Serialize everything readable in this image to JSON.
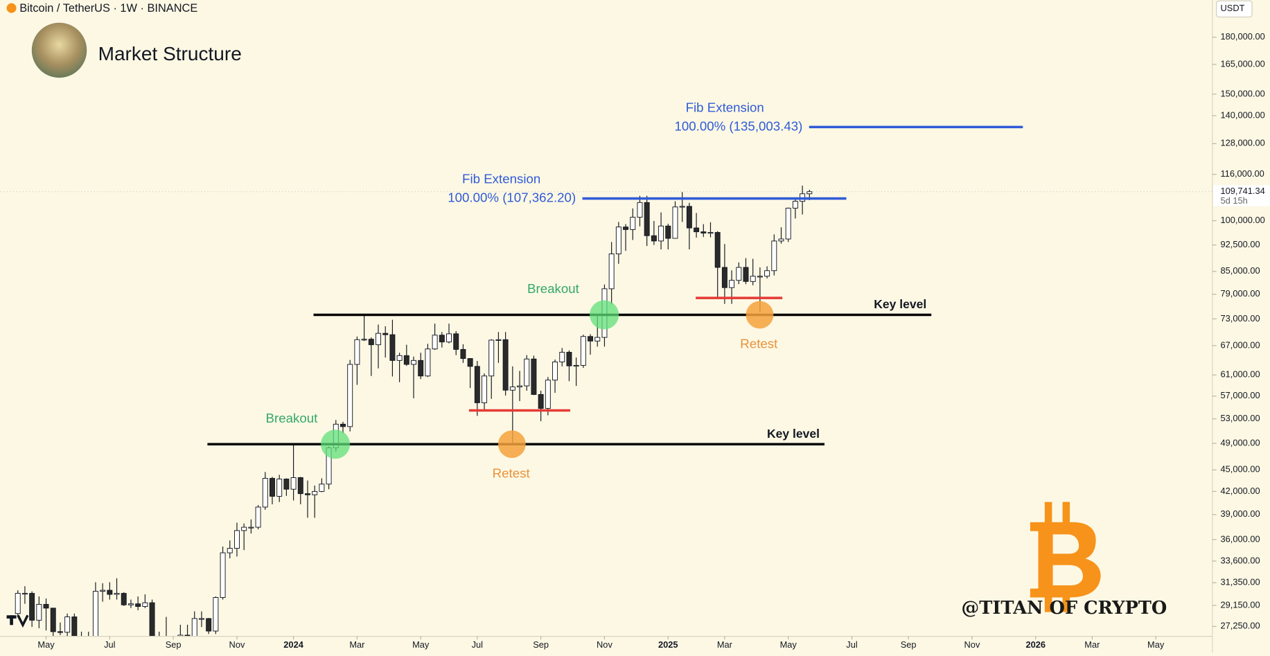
{
  "chart_data": {
    "type": "candlestick",
    "title": "Market Structure",
    "symbol": "Bitcoin / TetherUS · 1W · BINANCE",
    "currency": "USDT",
    "watermark": "@TITAN OF CRYPTO",
    "log_scale": true,
    "xlim": [
      -2.5,
      169
    ],
    "ylim": [
      26400,
      202800
    ],
    "xticks": [
      {
        "value": 4,
        "label": "May"
      },
      {
        "value": 13,
        "label": "Jul"
      },
      {
        "value": 22,
        "label": "Sep"
      },
      {
        "value": 31,
        "label": "Nov"
      },
      {
        "value": 39,
        "label": "2024"
      },
      {
        "value": 48,
        "label": "Mar"
      },
      {
        "value": 57,
        "label": "May"
      },
      {
        "value": 65,
        "label": "Jul"
      },
      {
        "value": 74,
        "label": "Sep"
      },
      {
        "value": 83,
        "label": "Nov"
      },
      {
        "value": 92,
        "label": "2025"
      },
      {
        "value": 100,
        "label": "Mar"
      },
      {
        "value": 109,
        "label": "May"
      },
      {
        "value": 118,
        "label": "Jul"
      },
      {
        "value": 126,
        "label": "Sep"
      },
      {
        "value": 135,
        "label": "Nov"
      },
      {
        "value": 144,
        "label": "2026"
      },
      {
        "value": 152,
        "label": "Mar"
      },
      {
        "value": 161,
        "label": "May"
      }
    ],
    "yticks": [
      {
        "value": 180000,
        "label": "180,000.00"
      },
      {
        "value": 165000,
        "label": "165,000.00"
      },
      {
        "value": 150000,
        "label": "150,000.00"
      },
      {
        "value": 140000,
        "label": "140,000.00"
      },
      {
        "value": 128000,
        "label": "128,000.00"
      },
      {
        "value": 116000,
        "label": "116,000.00"
      },
      {
        "value": 100000,
        "label": "100,000.00"
      },
      {
        "value": 92500,
        "label": "92,500.00"
      },
      {
        "value": 85000,
        "label": "85,000.00"
      },
      {
        "value": 79000,
        "label": "79,000.00"
      },
      {
        "value": 73000,
        "label": "73,000.00"
      },
      {
        "value": 67000,
        "label": "67,000.00"
      },
      {
        "value": 61000,
        "label": "61,000.00"
      },
      {
        "value": 57000,
        "label": "57,000.00"
      },
      {
        "value": 53000,
        "label": "53,000.00"
      },
      {
        "value": 49000,
        "label": "49,000.00"
      },
      {
        "value": 45000,
        "label": "45,000.00"
      },
      {
        "value": 42000,
        "label": "42,000.00"
      },
      {
        "value": 39000,
        "label": "39,000.00"
      },
      {
        "value": 36000,
        "label": "36,000.00"
      },
      {
        "value": 33600,
        "label": "33,600.00"
      },
      {
        "value": 31350,
        "label": "31,350.00"
      },
      {
        "value": 29150,
        "label": "29,150.00"
      },
      {
        "value": 27250,
        "label": "27,250.00"
      }
    ],
    "last_price": {
      "value": 109741.34,
      "label": "109,741.34"
    },
    "countdown": "5d 15h",
    "x": [
      0,
      1,
      2,
      3,
      4,
      5,
      6,
      7,
      8,
      9,
      10,
      11,
      12,
      13,
      14,
      15,
      16,
      17,
      18,
      19,
      20,
      21,
      22,
      23,
      24,
      25,
      26,
      27,
      28,
      29,
      30,
      31,
      32,
      33,
      34,
      35,
      36,
      37,
      38,
      39,
      40,
      41,
      42,
      43,
      44,
      45,
      46,
      47,
      48,
      49,
      50,
      51,
      52,
      53,
      54,
      55,
      56,
      57,
      58,
      59,
      60,
      61,
      62,
      63,
      64,
      65,
      66,
      67,
      68,
      69,
      70,
      71,
      72,
      73,
      74,
      75,
      76,
      77,
      78,
      79,
      80,
      81,
      82,
      83,
      84,
      85,
      86,
      87,
      88,
      89,
      90,
      91,
      92,
      93,
      94,
      95,
      96,
      97,
      98,
      99,
      100,
      101,
      102,
      103,
      104,
      105,
      106,
      107,
      108,
      109,
      110,
      111,
      112
    ],
    "open": [
      28400,
      30300,
      30300,
      27800,
      29250,
      28900,
      26800,
      26750,
      28100,
      25800,
      25900,
      26300,
      30500,
      30600,
      30200,
      30300,
      29200,
      29300,
      29050,
      29400,
      26100,
      26000,
      25800,
      25800,
      26500,
      26300,
      27950,
      27950,
      26850,
      29900,
      34500,
      35000,
      37050,
      37450,
      37450,
      39950,
      43800,
      41350,
      43700,
      42300,
      43900,
      41700,
      41550,
      42000,
      43000,
      48300,
      52100,
      51700,
      63100,
      68300,
      68400,
      67200,
      69700,
      69400,
      63900,
      64900,
      63100,
      63900,
      60800,
      66300,
      69300,
      67800,
      69600,
      66200,
      64300,
      62700,
      55800,
      60800,
      68200,
      68300,
      58100,
      58700,
      58900,
      64200,
      57300,
      54800,
      60000,
      63600,
      65600,
      62800,
      62900,
      69000,
      68000,
      68800,
      80400,
      89900,
      98000,
      97200,
      101100,
      106000,
      95300,
      93700,
      98300,
      94500,
      104500,
      104700,
      97700,
      96500,
      96100,
      96300,
      86100,
      80700,
      82600,
      86100,
      82300,
      83700,
      83700,
      85200,
      93700,
      94300,
      104100,
      106400,
      109000
    ],
    "high": [
      30600,
      31000,
      30500,
      30000,
      29800,
      28900,
      27600,
      28400,
      28400,
      26800,
      26800,
      31400,
      31300,
      31400,
      31800,
      30400,
      29700,
      30000,
      30200,
      29700,
      26800,
      28100,
      26400,
      27400,
      27400,
      28600,
      28600,
      28000,
      30000,
      35200,
      35900,
      38000,
      37900,
      38400,
      40200,
      44700,
      44000,
      44300,
      43800,
      48900,
      44000,
      43500,
      42800,
      43800,
      48500,
      52800,
      52500,
      64000,
      69000,
      73800,
      68800,
      71700,
      71300,
      72800,
      65500,
      67200,
      64700,
      65500,
      67400,
      71900,
      70000,
      71900,
      70200,
      67300,
      64300,
      63800,
      61300,
      68400,
      70000,
      70000,
      62700,
      61800,
      65000,
      64900,
      58000,
      60600,
      64100,
      66500,
      66000,
      64500,
      69400,
      69500,
      73600,
      81500,
      93400,
      99600,
      98900,
      104000,
      108300,
      108300,
      99900,
      102700,
      99000,
      106400,
      109600,
      105900,
      102500,
      98900,
      99500,
      96700,
      92800,
      85300,
      87500,
      88700,
      88500,
      86100,
      86400,
      95700,
      97900,
      104300,
      107100,
      111900,
      110400
    ],
    "low": [
      28100,
      29300,
      27200,
      27100,
      26900,
      25800,
      26500,
      26300,
      25400,
      24800,
      25000,
      26200,
      29500,
      29700,
      29700,
      29100,
      28900,
      28700,
      28900,
      25200,
      25800,
      25400,
      24900,
      25200,
      26100,
      26000,
      27200,
      26600,
      26600,
      29700,
      33900,
      34100,
      34800,
      36700,
      37200,
      39600,
      40300,
      40600,
      41400,
      40800,
      40300,
      38600,
      38600,
      41900,
      42300,
      47700,
      50600,
      50900,
      59100,
      68000,
      60800,
      62300,
      64500,
      60700,
      59600,
      62800,
      56600,
      60200,
      60600,
      66100,
      66600,
      67500,
      65000,
      63400,
      58500,
      53500,
      54300,
      56500,
      63400,
      57100,
      49000,
      56100,
      58000,
      57200,
      52600,
      53600,
      57600,
      62700,
      59800,
      58900,
      62400,
      65100,
      66800,
      66800,
      76500,
      87100,
      90800,
      94000,
      98200,
      92200,
      92500,
      91200,
      91200,
      94400,
      99600,
      91200,
      94700,
      94900,
      94800,
      78200,
      76600,
      76600,
      81600,
      81600,
      81300,
      74500,
      83100,
      83900,
      92900,
      93400,
      100700,
      102000,
      106800
    ],
    "close": [
      30300,
      30300,
      27800,
      29250,
      28900,
      26800,
      26750,
      28100,
      25800,
      25900,
      26300,
      30500,
      30600,
      30200,
      30300,
      29200,
      29300,
      29050,
      29400,
      26100,
      26000,
      25800,
      25800,
      26500,
      26300,
      27950,
      27950,
      26850,
      29900,
      34500,
      35000,
      37050,
      37450,
      37450,
      39950,
      43800,
      41350,
      43700,
      42300,
      43900,
      41700,
      41550,
      42000,
      43000,
      48300,
      52100,
      51700,
      63100,
      68300,
      68400,
      67200,
      69700,
      69400,
      63900,
      64900,
      63100,
      63900,
      60800,
      66300,
      69300,
      67800,
      69600,
      66200,
      64300,
      62700,
      55800,
      60800,
      68200,
      68300,
      58100,
      58700,
      58900,
      64200,
      57300,
      54800,
      60000,
      63600,
      65600,
      62800,
      62900,
      69000,
      68000,
      68800,
      80400,
      89900,
      98000,
      97200,
      101100,
      106000,
      95300,
      93700,
      98300,
      94500,
      104500,
      104700,
      97700,
      96500,
      96100,
      96300,
      86100,
      80700,
      82600,
      86100,
      82300,
      83700,
      83700,
      85200,
      93700,
      94300,
      104100,
      106400,
      109000,
      109741.34
    ],
    "key_levels": [
      {
        "label": "Key level",
        "value": 73960
      },
      {
        "label": "Key level",
        "value": 48860
      }
    ],
    "supports": [
      54450,
      78070
    ],
    "fib_extensions": [
      {
        "title": "Fib Extension",
        "label": "100.00% (107,362.20)",
        "value": 107362.2
      },
      {
        "title": "Fib Extension",
        "label": "100.00% (135,003.43)",
        "value": 135003.43
      }
    ],
    "breakouts": [
      "Breakout",
      "Breakout"
    ],
    "retests": [
      "Retest",
      "Retest"
    ]
  }
}
